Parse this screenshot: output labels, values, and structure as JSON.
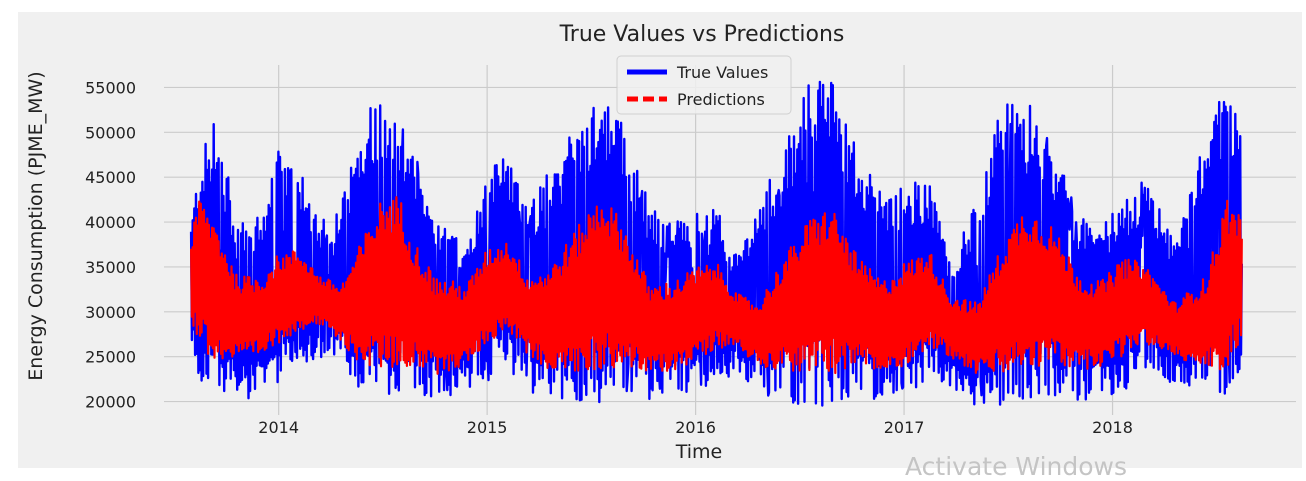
{
  "chart_data": {
    "type": "line",
    "title": "True Values vs Predictions",
    "xlabel": "Time",
    "ylabel": "Energy Consumption (PJME_MW)",
    "xlim": [
      2013.45,
      2018.88
    ],
    "ylim": [
      18500,
      57500
    ],
    "x_ticks": [
      2014,
      2015,
      2016,
      2017,
      2018
    ],
    "x_tick_labels": [
      "2014",
      "2015",
      "2016",
      "2017",
      "2018"
    ],
    "y_ticks": [
      20000,
      25000,
      30000,
      35000,
      40000,
      45000,
      50000,
      55000
    ],
    "y_tick_labels": [
      "20000",
      "25000",
      "30000",
      "35000",
      "40000",
      "45000",
      "50000",
      "55000"
    ],
    "grid": true,
    "legend_position": "top-center",
    "series": [
      {
        "name": "True Values",
        "color": "#0000ff",
        "style": "solid",
        "envelope": {
          "x": [
            2013.58,
            2013.62,
            2013.7,
            2013.8,
            2013.92,
            2014.0,
            2014.1,
            2014.2,
            2014.3,
            2014.4,
            2014.5,
            2014.58,
            2014.65,
            2014.75,
            2014.9,
            2015.0,
            2015.1,
            2015.2,
            2015.3,
            2015.45,
            2015.55,
            2015.65,
            2015.78,
            2015.9,
            2016.0,
            2016.1,
            2016.2,
            2016.3,
            2016.42,
            2016.55,
            2016.65,
            2016.78,
            2016.9,
            2017.0,
            2017.12,
            2017.22,
            2017.35,
            2017.48,
            2017.58,
            2017.7,
            2017.85,
            2017.95,
            2018.05,
            2018.15,
            2018.3,
            2018.45,
            2018.55,
            2018.62
          ],
          "high": [
            40000,
            47000,
            52000,
            40000,
            41000,
            48000,
            46000,
            40000,
            42000,
            52000,
            55000,
            51000,
            48000,
            40000,
            38000,
            46000,
            48000,
            42000,
            46000,
            52000,
            55000,
            51000,
            42000,
            40000,
            41000,
            42000,
            36000,
            42000,
            48000,
            56000,
            56000,
            48000,
            43000,
            44000,
            45000,
            36000,
            43000,
            54000,
            55000,
            49000,
            41000,
            40000,
            42000,
            45000,
            38000,
            50000,
            56000,
            49000
          ],
          "low": [
            26000,
            22000,
            21000,
            20000,
            20500,
            22000,
            24000,
            25000,
            23500,
            21000,
            20000,
            20500,
            21000,
            20000,
            21000,
            22000,
            23500,
            21000,
            20000,
            19500,
            19500,
            21000,
            20000,
            20500,
            21500,
            22000,
            23000,
            21000,
            20000,
            19500,
            19500,
            20500,
            20000,
            21000,
            22000,
            21000,
            19500,
            19500,
            20000,
            20500,
            20000,
            20500,
            21000,
            22000,
            22000,
            21000,
            20500,
            24000
          ]
        }
      },
      {
        "name": "Predictions",
        "color": "#ff0000",
        "style": "dashed",
        "envelope": {
          "x": [
            2013.58,
            2013.62,
            2013.7,
            2013.8,
            2013.92,
            2014.0,
            2014.1,
            2014.2,
            2014.3,
            2014.4,
            2014.5,
            2014.58,
            2014.65,
            2014.75,
            2014.9,
            2015.0,
            2015.1,
            2015.2,
            2015.3,
            2015.45,
            2015.55,
            2015.65,
            2015.78,
            2015.9,
            2016.0,
            2016.1,
            2016.2,
            2016.3,
            2016.42,
            2016.55,
            2016.65,
            2016.78,
            2016.9,
            2017.0,
            2017.12,
            2017.22,
            2017.35,
            2017.48,
            2017.58,
            2017.7,
            2017.85,
            2017.95,
            2018.05,
            2018.15,
            2018.3,
            2018.45,
            2018.55,
            2018.62
          ],
          "high": [
            38000,
            43000,
            40000,
            34000,
            34000,
            36500,
            37000,
            34000,
            33000,
            38000,
            43000,
            43000,
            38000,
            34000,
            33000,
            37000,
            38000,
            34000,
            35000,
            40000,
            43500,
            40000,
            33000,
            33500,
            35000,
            35500,
            32000,
            31000,
            36000,
            40500,
            42000,
            36000,
            33500,
            35500,
            37000,
            32000,
            31000,
            38000,
            42000,
            40000,
            34000,
            33500,
            36000,
            35500,
            31000,
            34000,
            43000,
            40500
          ],
          "low": [
            29000,
            26000,
            24500,
            24500,
            25000,
            26500,
            28000,
            28500,
            26500,
            24000,
            23500,
            23500,
            24000,
            23000,
            24000,
            26500,
            28000,
            25000,
            23500,
            23000,
            23500,
            24000,
            23000,
            23500,
            24500,
            26000,
            26000,
            24000,
            23500,
            23000,
            23000,
            24000,
            23000,
            24000,
            26000,
            25000,
            23000,
            23000,
            23500,
            24000,
            23500,
            24000,
            25000,
            26500,
            25000,
            23500,
            23500,
            27000
          ]
        }
      }
    ]
  },
  "watermark": "Activate Windows"
}
